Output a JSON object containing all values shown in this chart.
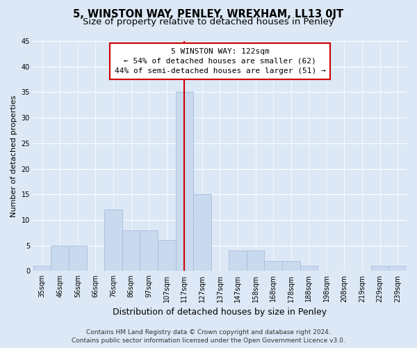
{
  "title": "5, WINSTON WAY, PENLEY, WREXHAM, LL13 0JT",
  "subtitle": "Size of property relative to detached houses in Penley",
  "xlabel": "Distribution of detached houses by size in Penley",
  "ylabel": "Number of detached properties",
  "bar_labels": [
    "35sqm",
    "46sqm",
    "56sqm",
    "66sqm",
    "76sqm",
    "86sqm",
    "97sqm",
    "107sqm",
    "117sqm",
    "127sqm",
    "137sqm",
    "147sqm",
    "158sqm",
    "168sqm",
    "178sqm",
    "188sqm",
    "198sqm",
    "208sqm",
    "219sqm",
    "229sqm",
    "239sqm"
  ],
  "bar_values": [
    1,
    5,
    5,
    0,
    12,
    8,
    8,
    6,
    35,
    15,
    0,
    4,
    4,
    2,
    2,
    1,
    0,
    0,
    0,
    1,
    1
  ],
  "bar_color": "#c9d9ee",
  "bar_edge_color": "#aabbdd",
  "vline_index": 8,
  "vline_color": "#cc0000",
  "annotation_title": "5 WINSTON WAY: 122sqm",
  "annotation_line1": "← 54% of detached houses are smaller (62)",
  "annotation_line2": "44% of semi-detached houses are larger (51) →",
  "annotation_box_facecolor": "#ffffff",
  "annotation_box_edgecolor": "#cc0000",
  "ylim": [
    0,
    45
  ],
  "yticks": [
    0,
    5,
    10,
    15,
    20,
    25,
    30,
    35,
    40,
    45
  ],
  "footer_line1": "Contains HM Land Registry data © Crown copyright and database right 2024.",
  "footer_line2": "Contains public sector information licensed under the Open Government Licence v3.0.",
  "bg_color": "#dce8f5",
  "plot_bg_color": "#dce8f5",
  "title_fontsize": 10.5,
  "subtitle_fontsize": 9.5,
  "xlabel_fontsize": 9,
  "ylabel_fontsize": 8,
  "tick_fontsize": 7,
  "annotation_fontsize": 8,
  "footer_fontsize": 6.5
}
